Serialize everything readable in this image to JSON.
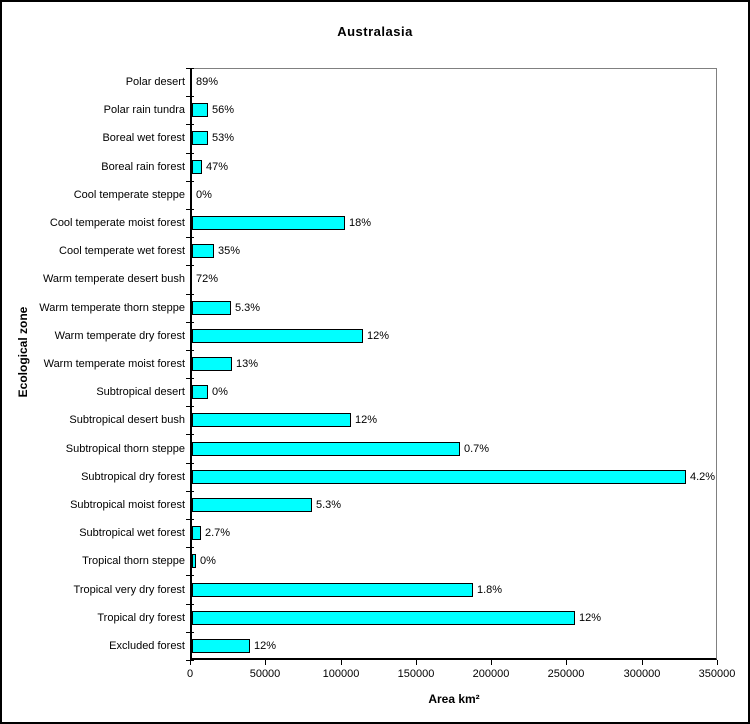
{
  "chart_data": {
    "type": "bar",
    "orientation": "horizontal",
    "title": "Australasia",
    "xlabel": "Area km²",
    "ylabel": "Ecological zone",
    "xlim": [
      0,
      350000
    ],
    "x_ticks": [
      "0",
      "50000",
      "100000",
      "150000",
      "200000",
      "250000",
      "300000",
      "350000"
    ],
    "grid": false,
    "legend": "none",
    "bar_color": "#00FFFF",
    "bar_border_color": "#000000",
    "plot_border_color": "#808080",
    "axis_color": "#000000",
    "categories": [
      "Polar desert",
      "Polar rain tundra",
      "Boreal wet forest",
      "Boreal rain forest",
      "Cool temperate steppe",
      "Cool temperate moist forest",
      "Cool temperate wet forest",
      "Warm temperate desert bush",
      "Warm temperate thorn steppe",
      "Warm temperate dry forest",
      "Warm temperate moist forest",
      "Subtropical desert",
      "Subtropical desert bush",
      "Subtropical thorn steppe",
      "Subtropical dry forest",
      "Subtropical moist forest",
      "Subtropical wet forest",
      "Tropical thorn steppe",
      "Tropical very dry forest",
      "Tropical dry forest",
      "Excluded forest"
    ],
    "values": [
      0,
      11000,
      11000,
      7000,
      0,
      102000,
      15000,
      0,
      26000,
      114000,
      27000,
      11000,
      106000,
      179000,
      330000,
      80000,
      6000,
      2500,
      188000,
      256000,
      39000
    ],
    "data_labels": [
      "89%",
      "56%",
      "53%",
      "47%",
      "0%",
      "18%",
      "35%",
      "72%",
      "5.3%",
      "12%",
      "13%",
      "0%",
      "12%",
      "0.7%",
      "4.2%",
      "5.3%",
      "2.7%",
      "0%",
      "1.8%",
      "12%",
      "12%"
    ]
  }
}
